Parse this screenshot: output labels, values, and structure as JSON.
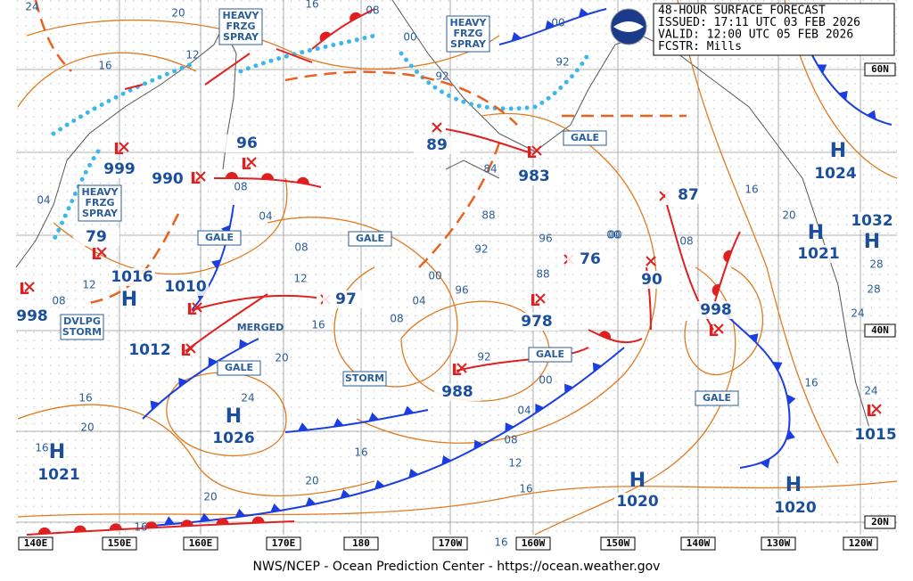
{
  "header": {
    "lines": [
      "48-HOUR SURFACE FORECAST",
      "ISSUED: 17:11 UTC 03 FEB 2026",
      "VALID:  12:00 UTC 05 FEB 2026",
      "FCSTR:  Mills"
    ]
  },
  "footer": "NWS/NCEP - Ocean Prediction Center - https://ocean.weather.gov",
  "lon_labels": [
    "140E",
    "150E",
    "160E",
    "170E",
    "180",
    "170W",
    "160W",
    "150W",
    "140W",
    "130W",
    "120W"
  ],
  "lat_labels": [
    "60N",
    "40N",
    "20N"
  ],
  "centers": [
    {
      "symbol": "H",
      "value": "1024"
    },
    {
      "symbol": "H",
      "value": "1021"
    },
    {
      "symbol": "H",
      "value": "1032"
    },
    {
      "symbol": "H",
      "value": "1026"
    },
    {
      "symbol": "H",
      "value": "1021"
    },
    {
      "symbol": "H",
      "value": "1020"
    },
    {
      "symbol": "H",
      "value": "1020"
    },
    {
      "symbol": "H",
      "value": "1016"
    },
    {
      "symbol": "L",
      "value": "999"
    },
    {
      "symbol": "L",
      "value": "990"
    },
    {
      "symbol": "L",
      "value": "96"
    },
    {
      "symbol": "L",
      "value": "79"
    },
    {
      "symbol": "L",
      "value": "998"
    },
    {
      "symbol": "L",
      "value": "1010"
    },
    {
      "symbol": "L",
      "value": "1012"
    },
    {
      "symbol": "L",
      "value": "983"
    },
    {
      "symbol": "L",
      "value": "978"
    },
    {
      "symbol": "L",
      "value": "988"
    },
    {
      "symbol": "L",
      "value": "998"
    },
    {
      "symbol": "L",
      "value": "1015"
    },
    {
      "value": "97"
    },
    {
      "value": "89"
    },
    {
      "value": "87"
    },
    {
      "value": "76"
    },
    {
      "value": "90"
    }
  ],
  "boxes": [
    {
      "lines": [
        "HEAVY",
        "FRZG",
        "SPRAY"
      ]
    },
    {
      "lines": [
        "HEAVY",
        "FRZG",
        "SPRAY"
      ]
    },
    {
      "lines": [
        "HEAVY",
        "FRZG",
        "SPRAY"
      ]
    },
    {
      "lines": [
        "GALE"
      ]
    },
    {
      "lines": [
        "GALE"
      ]
    },
    {
      "lines": [
        "GALE"
      ]
    },
    {
      "lines": [
        "GALE"
      ]
    },
    {
      "lines": [
        "GALE"
      ]
    },
    {
      "lines": [
        "GALE"
      ]
    },
    {
      "lines": [
        "STORM"
      ]
    },
    {
      "lines": [
        "DVLPG",
        "STORM"
      ]
    }
  ],
  "annotations": [
    "MERGED"
  ],
  "isobar_labels": [
    "24",
    "20",
    "16",
    "08",
    "00",
    "12",
    "16",
    "92",
    "92",
    "00",
    "84",
    "88",
    "92",
    "96",
    "00",
    "04",
    "08",
    "08",
    "12",
    "16",
    "00",
    "04",
    "08",
    "12",
    "16",
    "20",
    "24",
    "20",
    "16",
    "20",
    "16",
    "16",
    "20",
    "04",
    "08",
    "00",
    "88",
    "92",
    "96",
    "00",
    "08",
    "16",
    "20",
    "24",
    "28",
    "28",
    "16",
    "24",
    "12",
    "08",
    "04",
    "16",
    "16"
  ]
}
